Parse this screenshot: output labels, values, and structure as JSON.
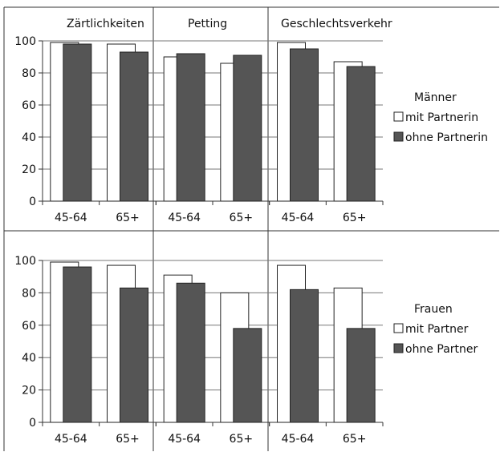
{
  "chart_data": [
    {
      "type": "bar",
      "panel_label": "Männer",
      "groups": [
        "Zärtlichkeiten",
        "Petting",
        "Geschlechtsverkehr"
      ],
      "categories": [
        "45-64",
        "65+"
      ],
      "ylim": [
        0,
        100
      ],
      "yticks": [
        0,
        20,
        40,
        60,
        80,
        100
      ],
      "grid": true,
      "legend_position": "right",
      "series": [
        {
          "name": "mit Partnerin",
          "color": "#ffffff",
          "values": [
            [
              99,
              98
            ],
            [
              90,
              86
            ],
            [
              99,
              87
            ]
          ]
        },
        {
          "name": "ohne Partnerin",
          "color": "#555555",
          "values": [
            [
              98,
              93
            ],
            [
              92,
              91
            ],
            [
              95,
              84
            ]
          ]
        }
      ]
    },
    {
      "type": "bar",
      "panel_label": "Frauen",
      "groups": [
        "Zärtlichkeiten",
        "Petting",
        "Geschlechtsverkehr"
      ],
      "categories": [
        "45-64",
        "65+"
      ],
      "ylim": [
        0,
        100
      ],
      "yticks": [
        0,
        20,
        40,
        60,
        80,
        100
      ],
      "grid": true,
      "legend_position": "right",
      "series": [
        {
          "name": "mit Partner",
          "color": "#ffffff",
          "values": [
            [
              99,
              97
            ],
            [
              91,
              80
            ],
            [
              97,
              83
            ]
          ]
        },
        {
          "name": "ohne Partner",
          "color": "#555555",
          "values": [
            [
              96,
              83
            ],
            [
              86,
              58
            ],
            [
              82,
              58
            ]
          ]
        }
      ]
    }
  ]
}
